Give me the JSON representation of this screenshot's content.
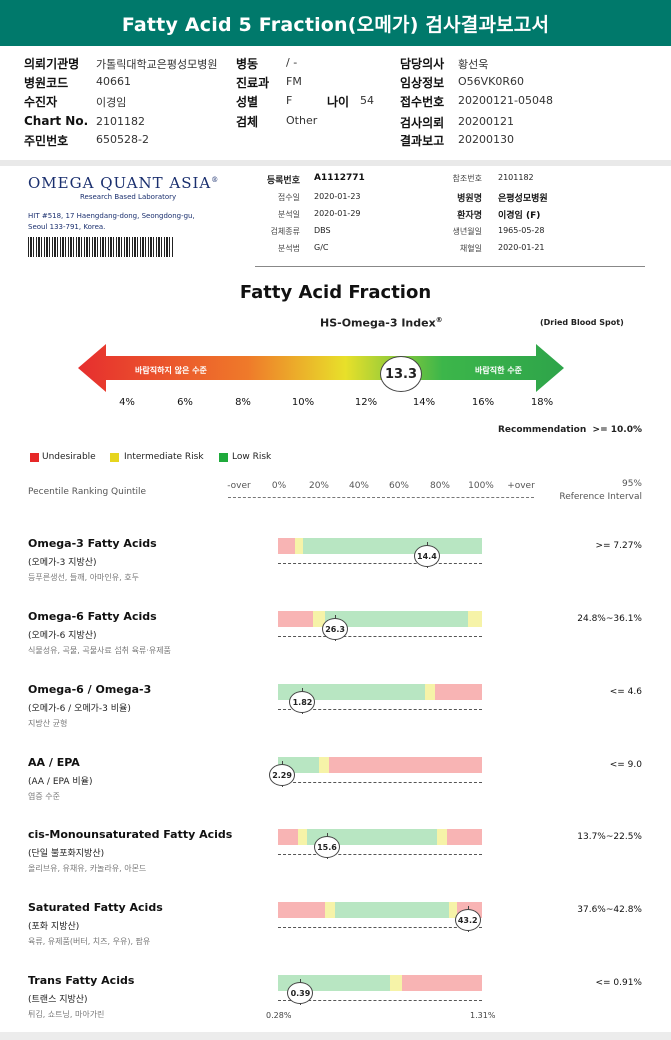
{
  "title": "Fatty Acid 5 Fraction(오메가) 검사결과보고서",
  "patient_info": {
    "hospital_label": "의뢰기관명",
    "hospital_value": "가톨릭대학교은평성모병원",
    "ward_label": "병동",
    "ward_value": "/ -",
    "doctor_label": "담당의사",
    "doctor_value": "황선욱",
    "code_label": "병원코드",
    "code_value": "40661",
    "dept_label": "진료과",
    "dept_value": "FM",
    "clinical_label": "임상정보",
    "clinical_value": "O56VK0R60",
    "recipient_label": "수진자",
    "recipient_value": "이경임",
    "sex_label": "성별",
    "sex_value": "F",
    "age_label": "나이",
    "age_value": "54",
    "receipt_label": "접수번호",
    "receipt_value": "20200121-05048",
    "chart_label": "Chart No.",
    "chart_value": "2101182",
    "specimen_label": "검체",
    "specimen_value": "Other",
    "request_label": "검사의뢰",
    "request_value": "20200121",
    "resident_label": "주민번호",
    "resident_value": "650528-2",
    "report_label": "결과보고",
    "report_value": "20200130"
  },
  "lab": {
    "logo": "OMEGA QUANT ASIA",
    "logo_mark": "®",
    "sub": "Research Based Laboratory",
    "address1": "HIT #518, 17 Haengdang-dong, Seongdong-gu,",
    "address2": "Seoul 133-791, Korea.",
    "reg_no_label": "등록번호",
    "reg_no_value": "A1112771",
    "received_label": "접수일",
    "received_value": "2020-01-23",
    "analyzed_label": "분석일",
    "analyzed_value": "2020-01-29",
    "sample_type_label": "검체종류",
    "sample_type_value": "DBS",
    "method_label": "분석법",
    "method_value": "G/C",
    "ref_no_label": "참조번호",
    "ref_no_value": "2101182",
    "hospital_name_label": "병원명",
    "hospital_name_value": "은평성모병원",
    "patient_name_label": "환자명",
    "patient_name_value": "이경임 (F)",
    "dob_label": "생년월일",
    "dob_value": "1965-05-28",
    "draw_date_label": "채혈일",
    "draw_date_value": "2020-01-21"
  },
  "index_section": {
    "title": "Fatty Acid Fraction",
    "index_label": "HS-Omega-3 Index",
    "index_mark": "®",
    "sample_type": "(Dried Blood Spot)",
    "left_text": "바람직하지 않은 수준",
    "right_text": "바람직한 수준",
    "value": "13.3",
    "ticks": [
      "4%",
      "6%",
      "8%",
      "10%",
      "12%",
      "14%",
      "16%",
      "18%"
    ],
    "recommendation_label": "Recommendation",
    "recommendation_value": ">= 10.0%"
  },
  "legend": {
    "undesirable": "Undesirable",
    "intermediate": "Intermediate Risk",
    "low": "Low Risk",
    "colors": {
      "undesirable": "#e62828",
      "intermediate": "#e6d51e",
      "low": "#1faa3c"
    }
  },
  "ranking": {
    "label": "Pecentile Ranking Quintile",
    "scale": [
      "-over",
      "0%",
      "20%",
      "40%",
      "60%",
      "80%",
      "100%",
      "+over"
    ],
    "ref_head1": "95%",
    "ref_head2": "Reference Interval"
  },
  "fatty_acids": [
    {
      "name": "Omega-3 Fatty Acids",
      "korean": "(오메가-3 지방산)",
      "food": "등푸른생선, 들깨, 아마인유, 호두",
      "value": "14.4",
      "ref": ">= 7.27%",
      "pos": 0.73,
      "segments": [
        [
          "red",
          0.085
        ],
        [
          "yellow",
          0.04
        ],
        [
          "green",
          0.875
        ]
      ]
    },
    {
      "name": "Omega-6 Fatty Acids",
      "korean": "(오메가-6 지방산)",
      "food": "식물성유, 곡물, 곡물사료 섭취 육류·유제품",
      "value": "26.3",
      "ref": "24.8%~36.1%",
      "pos": 0.28,
      "segments": [
        [
          "red",
          0.17
        ],
        [
          "yellow",
          0.06
        ],
        [
          "green",
          0.7
        ],
        [
          "yellow",
          0.07
        ]
      ]
    },
    {
      "name": "Omega-6 / Omega-3",
      "korean": "(오메가-6 / 오메가-3 비율)",
      "food": "지방산 균형",
      "value": "1.82",
      "ref": "<= 4.6",
      "pos": 0.12,
      "segments": [
        [
          "green",
          0.72
        ],
        [
          "yellow",
          0.05
        ],
        [
          "red",
          0.23
        ]
      ]
    },
    {
      "name": "AA / EPA",
      "korean": "(AA / EPA 비율)",
      "food": "염증 수준",
      "value": "2.29",
      "ref": "<= 9.0",
      "pos": 0.02,
      "segments": [
        [
          "green",
          0.2
        ],
        [
          "yellow",
          0.05
        ],
        [
          "red",
          0.75
        ]
      ]
    },
    {
      "name": "cis-Monounsaturated Fatty Acids",
      "korean": "(단일 불포화지방산)",
      "food": "올리브유, 유채유, 카놀라유, 아몬드",
      "value": "15.6",
      "ref": "13.7%~22.5%",
      "pos": 0.24,
      "segments": [
        [
          "red",
          0.1
        ],
        [
          "yellow",
          0.04
        ],
        [
          "green",
          0.64
        ],
        [
          "yellow",
          0.05
        ],
        [
          "red",
          0.17
        ]
      ]
    },
    {
      "name": "Saturated Fatty Acids",
      "korean": "(포화 지방산)",
      "food": "육류, 유제품(버터, 치즈, 우유), 팜유",
      "value": "43.2",
      "ref": "37.6%~42.8%",
      "pos": 0.93,
      "segments": [
        [
          "red",
          0.23
        ],
        [
          "yellow",
          0.05
        ],
        [
          "green",
          0.56
        ],
        [
          "yellow",
          0.04
        ],
        [
          "red",
          0.12
        ]
      ]
    },
    {
      "name": "Trans Fatty Acids",
      "korean": "(트랜스 지방산)",
      "food": "튀김, 쇼트닝, 마아가린",
      "value": "0.39",
      "ref": "<= 0.91%",
      "pos": 0.11,
      "segments": [
        [
          "green",
          0.55
        ],
        [
          "yellow",
          0.06
        ],
        [
          "red",
          0.39
        ]
      ]
    }
  ],
  "trans_scale": {
    "min": "0.28%",
    "max": "1.31%"
  },
  "segment_colors": {
    "red": "#f8b4b4",
    "yellow": "#f6f3a8",
    "green": "#b8e6c2"
  }
}
